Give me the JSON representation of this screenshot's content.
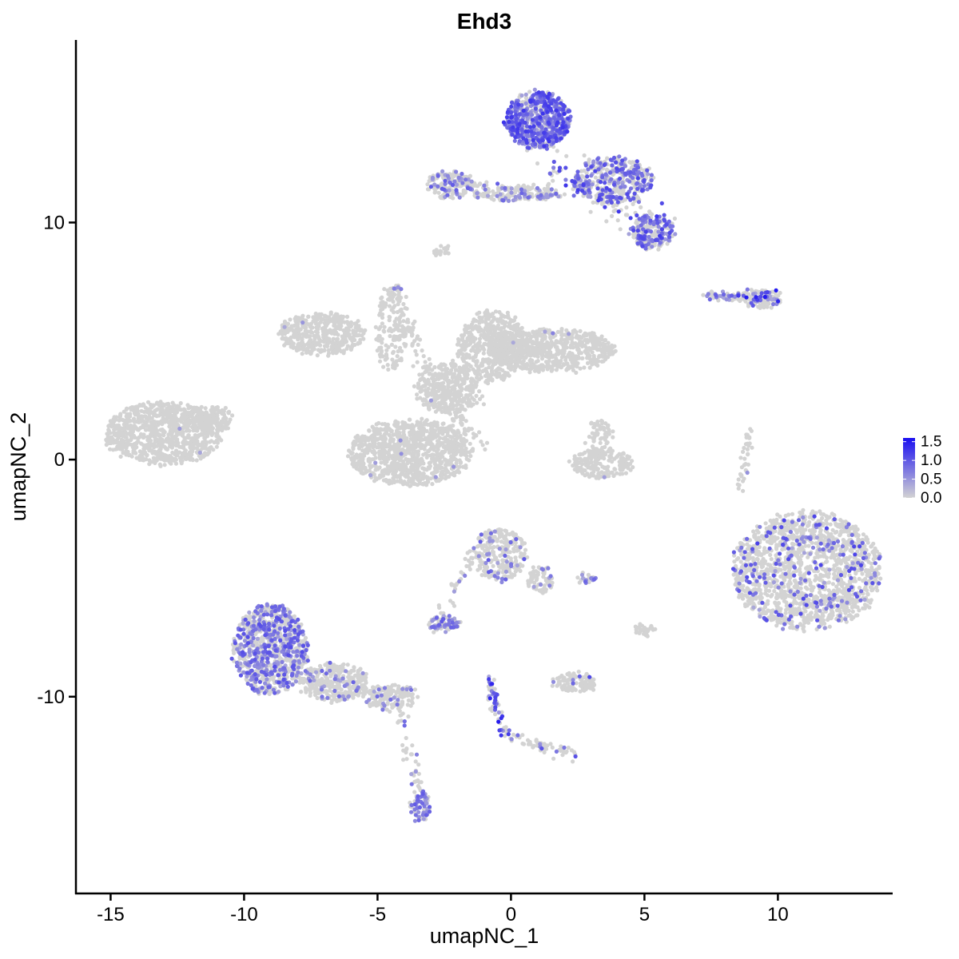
{
  "chart_data": {
    "type": "scatter",
    "title": "Ehd3",
    "xlabel": "umapNC_1",
    "ylabel": "umapNC_2",
    "xlim": [
      -16.3,
      14.3
    ],
    "ylim": [
      -18.3,
      17.7
    ],
    "x_ticks": [
      -15,
      -10,
      -5,
      0,
      5,
      10
    ],
    "x_tick_labels": [
      "-15",
      "-10",
      "-5",
      "0",
      "5",
      "10"
    ],
    "y_ticks": [
      -10,
      0,
      10
    ],
    "y_tick_labels": [
      "-10",
      "0",
      "10"
    ],
    "grid": false,
    "legend": {
      "placement": "right",
      "type": "colorbar",
      "range": [
        0,
        1.6
      ],
      "ticks": [
        0.0,
        0.5,
        1.0,
        1.5
      ],
      "tick_labels": [
        "0.0",
        "0.5",
        "1.0",
        "1.5"
      ],
      "low_color": "#d3d3d3",
      "high_color": "#1a0ff0"
    },
    "colors": {
      "background_points": "#d3d3d3",
      "low": "#d3d3d3",
      "high": "#1a0ff0"
    },
    "clusters": [
      {
        "cx": -13.0,
        "cy": 1.1,
        "rx": 2.2,
        "ry": 1.3,
        "n": 900,
        "expr_frac": 0.002,
        "expr_max": 0.5
      },
      {
        "cx": -11.3,
        "cy": 1.7,
        "rx": 0.9,
        "ry": 0.6,
        "n": 150,
        "expr_frac": 0.0,
        "expr_max": 0.5
      },
      {
        "cx": -7.1,
        "cy": 5.3,
        "rx": 1.6,
        "ry": 0.9,
        "n": 450,
        "expr_frac": 0.004,
        "expr_max": 0.6
      },
      {
        "cx": -3.8,
        "cy": 0.3,
        "rx": 2.3,
        "ry": 1.4,
        "n": 1000,
        "expr_frac": 0.004,
        "expr_max": 0.6
      },
      {
        "cx": -2.4,
        "cy": 3.0,
        "rx": 1.2,
        "ry": 1.1,
        "n": 350,
        "expr_frac": 0.003,
        "expr_max": 0.6
      },
      {
        "cx": -0.7,
        "cy": 4.8,
        "rx": 1.3,
        "ry": 1.5,
        "n": 500,
        "expr_frac": 0.003,
        "expr_max": 0.6
      },
      {
        "cx": 1.5,
        "cy": 4.6,
        "rx": 2.4,
        "ry": 0.9,
        "n": 700,
        "expr_frac": 0.004,
        "expr_max": 0.7
      },
      {
        "cx": -4.5,
        "cy": 5.5,
        "rx": 0.6,
        "ry": 1.8,
        "n": 150,
        "expr_frac": 0.01,
        "expr_max": 0.7
      },
      {
        "cx": 3.4,
        "cy": -0.2,
        "rx": 1.2,
        "ry": 0.6,
        "n": 180,
        "expr_frac": 0.01,
        "expr_max": 0.7
      },
      {
        "cx": 3.3,
        "cy": 0.8,
        "rx": 0.5,
        "ry": 0.9,
        "n": 80,
        "expr_frac": 0.0,
        "expr_max": 0.5
      },
      {
        "cx": 1.0,
        "cy": 14.3,
        "rx": 1.2,
        "ry": 1.2,
        "n": 650,
        "expr_frac": 0.7,
        "expr_max": 1.3
      },
      {
        "cx": 3.8,
        "cy": 11.8,
        "rx": 1.5,
        "ry": 1.0,
        "n": 380,
        "expr_frac": 0.45,
        "expr_max": 1.2
      },
      {
        "cx": 5.3,
        "cy": 9.6,
        "rx": 0.8,
        "ry": 0.7,
        "n": 200,
        "expr_frac": 0.45,
        "expr_max": 1.2
      },
      {
        "cx": -2.3,
        "cy": 11.6,
        "rx": 0.9,
        "ry": 0.55,
        "n": 160,
        "expr_frac": 0.3,
        "expr_max": 1.0
      },
      {
        "cx": 0.3,
        "cy": 11.2,
        "rx": 1.7,
        "ry": 0.3,
        "n": 140,
        "expr_frac": 0.2,
        "expr_max": 0.9
      },
      {
        "cx": 9.4,
        "cy": 6.8,
        "rx": 0.7,
        "ry": 0.4,
        "n": 70,
        "expr_frac": 0.35,
        "expr_max": 1.6
      },
      {
        "cx": 7.9,
        "cy": 6.9,
        "rx": 0.8,
        "ry": 0.2,
        "n": 45,
        "expr_frac": 0.3,
        "expr_max": 1.0
      },
      {
        "cx": 11.1,
        "cy": -4.7,
        "rx": 2.8,
        "ry": 2.5,
        "n": 1600,
        "expr_frac": 0.14,
        "expr_max": 1.2
      },
      {
        "cx": -9.0,
        "cy": -8.0,
        "rx": 1.4,
        "ry": 1.9,
        "n": 900,
        "expr_frac": 0.45,
        "expr_max": 1.1
      },
      {
        "cx": -6.6,
        "cy": -9.4,
        "rx": 1.3,
        "ry": 0.8,
        "n": 350,
        "expr_frac": 0.12,
        "expr_max": 0.9
      },
      {
        "cx": -4.5,
        "cy": -10.0,
        "rx": 1.0,
        "ry": 0.5,
        "n": 150,
        "expr_frac": 0.12,
        "expr_max": 0.9
      },
      {
        "cx": -3.4,
        "cy": -14.6,
        "rx": 0.35,
        "ry": 0.7,
        "n": 70,
        "expr_frac": 0.55,
        "expr_max": 1.0
      },
      {
        "cx": -0.4,
        "cy": -4.0,
        "rx": 1.0,
        "ry": 1.1,
        "n": 260,
        "expr_frac": 0.12,
        "expr_max": 1.0
      },
      {
        "cx": 1.1,
        "cy": -5.1,
        "rx": 0.5,
        "ry": 0.6,
        "n": 70,
        "expr_frac": 0.12,
        "expr_max": 1.0
      },
      {
        "cx": -2.5,
        "cy": -6.9,
        "rx": 0.6,
        "ry": 0.3,
        "n": 70,
        "expr_frac": 0.45,
        "expr_max": 1.0
      },
      {
        "cx": 2.4,
        "cy": -9.4,
        "rx": 0.8,
        "ry": 0.4,
        "n": 110,
        "expr_frac": 0.04,
        "expr_max": 1.3
      },
      {
        "cx": 5.0,
        "cy": -7.2,
        "rx": 0.4,
        "ry": 0.25,
        "n": 30,
        "expr_frac": 0.0,
        "expr_max": 0.5
      },
      {
        "cx": 2.9,
        "cy": -5.0,
        "rx": 0.4,
        "ry": 0.15,
        "n": 20,
        "expr_frac": 0.5,
        "expr_max": 0.9
      },
      {
        "cx": -2.6,
        "cy": 8.8,
        "rx": 0.3,
        "ry": 0.2,
        "n": 20,
        "expr_frac": 0.0,
        "expr_max": 0.5
      },
      {
        "cx": -4.3,
        "cy": 7.3,
        "rx": 0.2,
        "ry": 0.2,
        "n": 10,
        "expr_frac": 0.5,
        "expr_max": 0.8
      }
    ],
    "paths": [
      {
        "from": [
          -0.9,
          -9.2
        ],
        "to": [
          -0.2,
          -11.6
        ],
        "n": 60,
        "spread": 0.12,
        "expr_frac": 0.6,
        "expr_max": 1.5
      },
      {
        "from": [
          -0.2,
          -11.6
        ],
        "to": [
          2.4,
          -12.5
        ],
        "n": 55,
        "spread": 0.12,
        "expr_frac": 0.15,
        "expr_max": 1.1
      },
      {
        "from": [
          -3.0,
          -7.5
        ],
        "to": [
          -1.5,
          -4.0
        ],
        "n": 40,
        "spread": 0.12,
        "expr_frac": 0.05,
        "expr_max": 0.8
      },
      {
        "from": [
          -4.2,
          -10.5
        ],
        "to": [
          -3.4,
          -14.0
        ],
        "n": 40,
        "spread": 0.15,
        "expr_frac": 0.1,
        "expr_max": 0.9
      },
      {
        "from": [
          -2.9,
          2.8
        ],
        "to": [
          -1.2,
          2.6
        ],
        "n": 40,
        "spread": 0.15,
        "expr_frac": 0.0,
        "expr_max": 0.5
      },
      {
        "from": [
          -4.4,
          7.3
        ],
        "to": [
          -3.3,
          3.8
        ],
        "n": 60,
        "spread": 0.15,
        "expr_frac": 0.0,
        "expr_max": 0.5
      },
      {
        "from": [
          -2.3,
          2.0
        ],
        "to": [
          -1.1,
          0.6
        ],
        "n": 40,
        "spread": 0.15,
        "expr_frac": 0.0,
        "expr_max": 0.5
      },
      {
        "from": [
          8.6,
          -1.4
        ],
        "to": [
          8.9,
          1.3
        ],
        "n": 40,
        "spread": 0.1,
        "expr_frac": 0.05,
        "expr_max": 0.7
      },
      {
        "from": [
          1.4,
          12.4
        ],
        "to": [
          5.6,
          9.8
        ],
        "n": 100,
        "spread": 0.35,
        "expr_frac": 0.35,
        "expr_max": 1.3
      },
      {
        "from": [
          -2.0,
          11.6
        ],
        "to": [
          1.4,
          11.2
        ],
        "n": 60,
        "spread": 0.15,
        "expr_frac": 0.25,
        "expr_max": 1.0
      },
      {
        "from": [
          8.3,
          6.9
        ],
        "to": [
          9.9,
          6.9
        ],
        "n": 40,
        "spread": 0.15,
        "expr_frac": 0.3,
        "expr_max": 1.6
      }
    ]
  }
}
